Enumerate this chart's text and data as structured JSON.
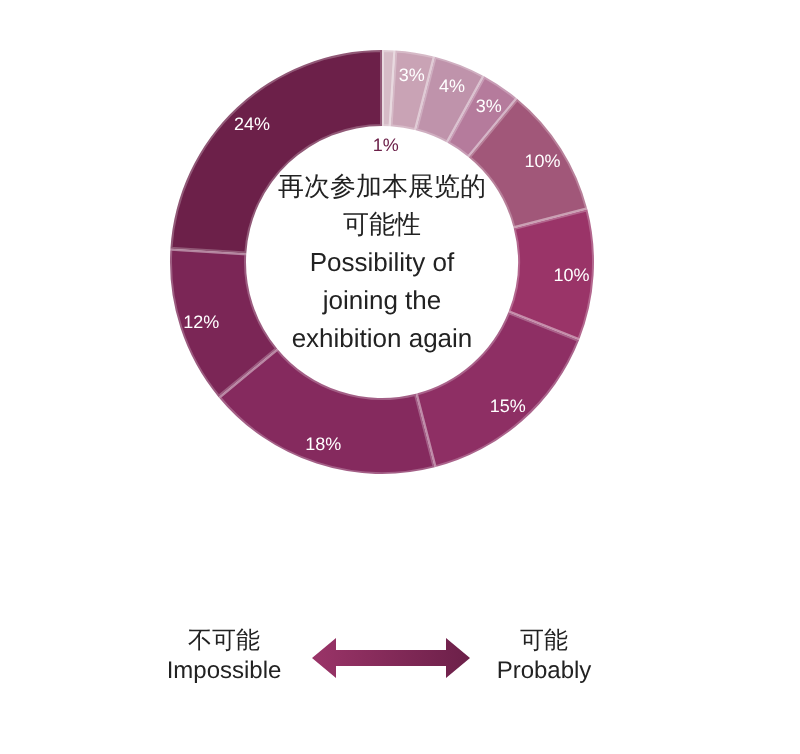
{
  "chart_data": {
    "type": "donut",
    "title": "再次参加本展览的可能性",
    "subtitle": "Possibility of joining the exhibition again",
    "categories": [
      null,
      null,
      null,
      null,
      null,
      null,
      null,
      null,
      null,
      null
    ],
    "values": [
      1,
      3,
      4,
      3,
      10,
      10,
      15,
      18,
      12,
      24
    ],
    "value_labels": [
      "1%",
      "3%",
      "4%",
      "3%",
      "10%",
      "10%",
      "15%",
      "18%",
      "12%",
      "24%"
    ],
    "colors": [
      "#d6bcc7",
      "#c9a3b5",
      "#bf93ab",
      "#b57b9c",
      "#a15779",
      "#9a3468",
      "#8e2f64",
      "#852a5e",
      "#7b2656",
      "#6c2049"
    ],
    "annotations": [
      "不可能\nImpossible",
      "可能\nProbably"
    ]
  }
}
